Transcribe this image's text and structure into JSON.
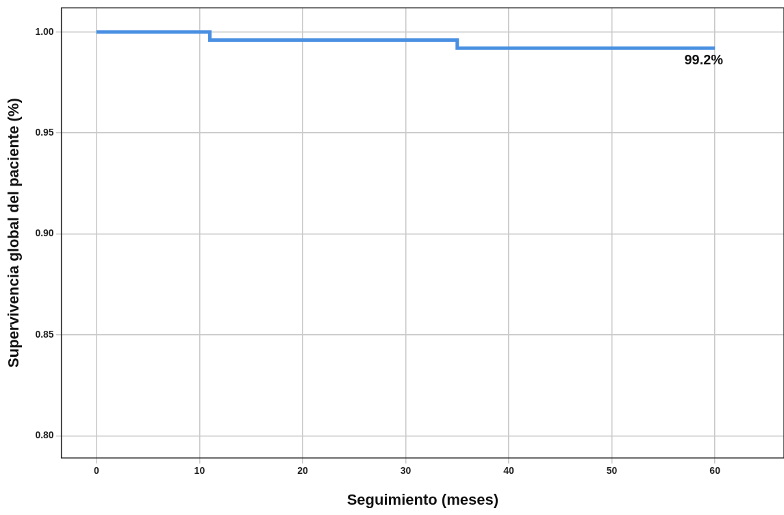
{
  "chart_data": {
    "type": "step",
    "xlabel": "Seguimiento (meses)",
    "ylabel": "Supervivencia global del paciente (%)",
    "x": [
      0,
      11,
      35,
      60
    ],
    "series": [
      {
        "color": "#4a90e2",
        "values": [
          1.0,
          0.996,
          0.992,
          0.992
        ]
      }
    ],
    "xlim": [
      -3.4,
      66.7
    ],
    "xticks": [
      0,
      10,
      20,
      30,
      40,
      50,
      60
    ],
    "ylim": [
      0.789,
      1.012
    ],
    "yticks": [
      {
        "value": 0.8,
        "label": "0.80"
      },
      {
        "value": 0.85,
        "label": "0.85"
      },
      {
        "value": 0.9,
        "label": "0.90"
      },
      {
        "value": 0.95,
        "label": "0.95"
      },
      {
        "value": 1.0,
        "label": "1.00"
      }
    ],
    "annotations": [
      {
        "text": "99.2%",
        "x": 60,
        "y": 0.992
      }
    ],
    "grid": true,
    "legend": false
  }
}
